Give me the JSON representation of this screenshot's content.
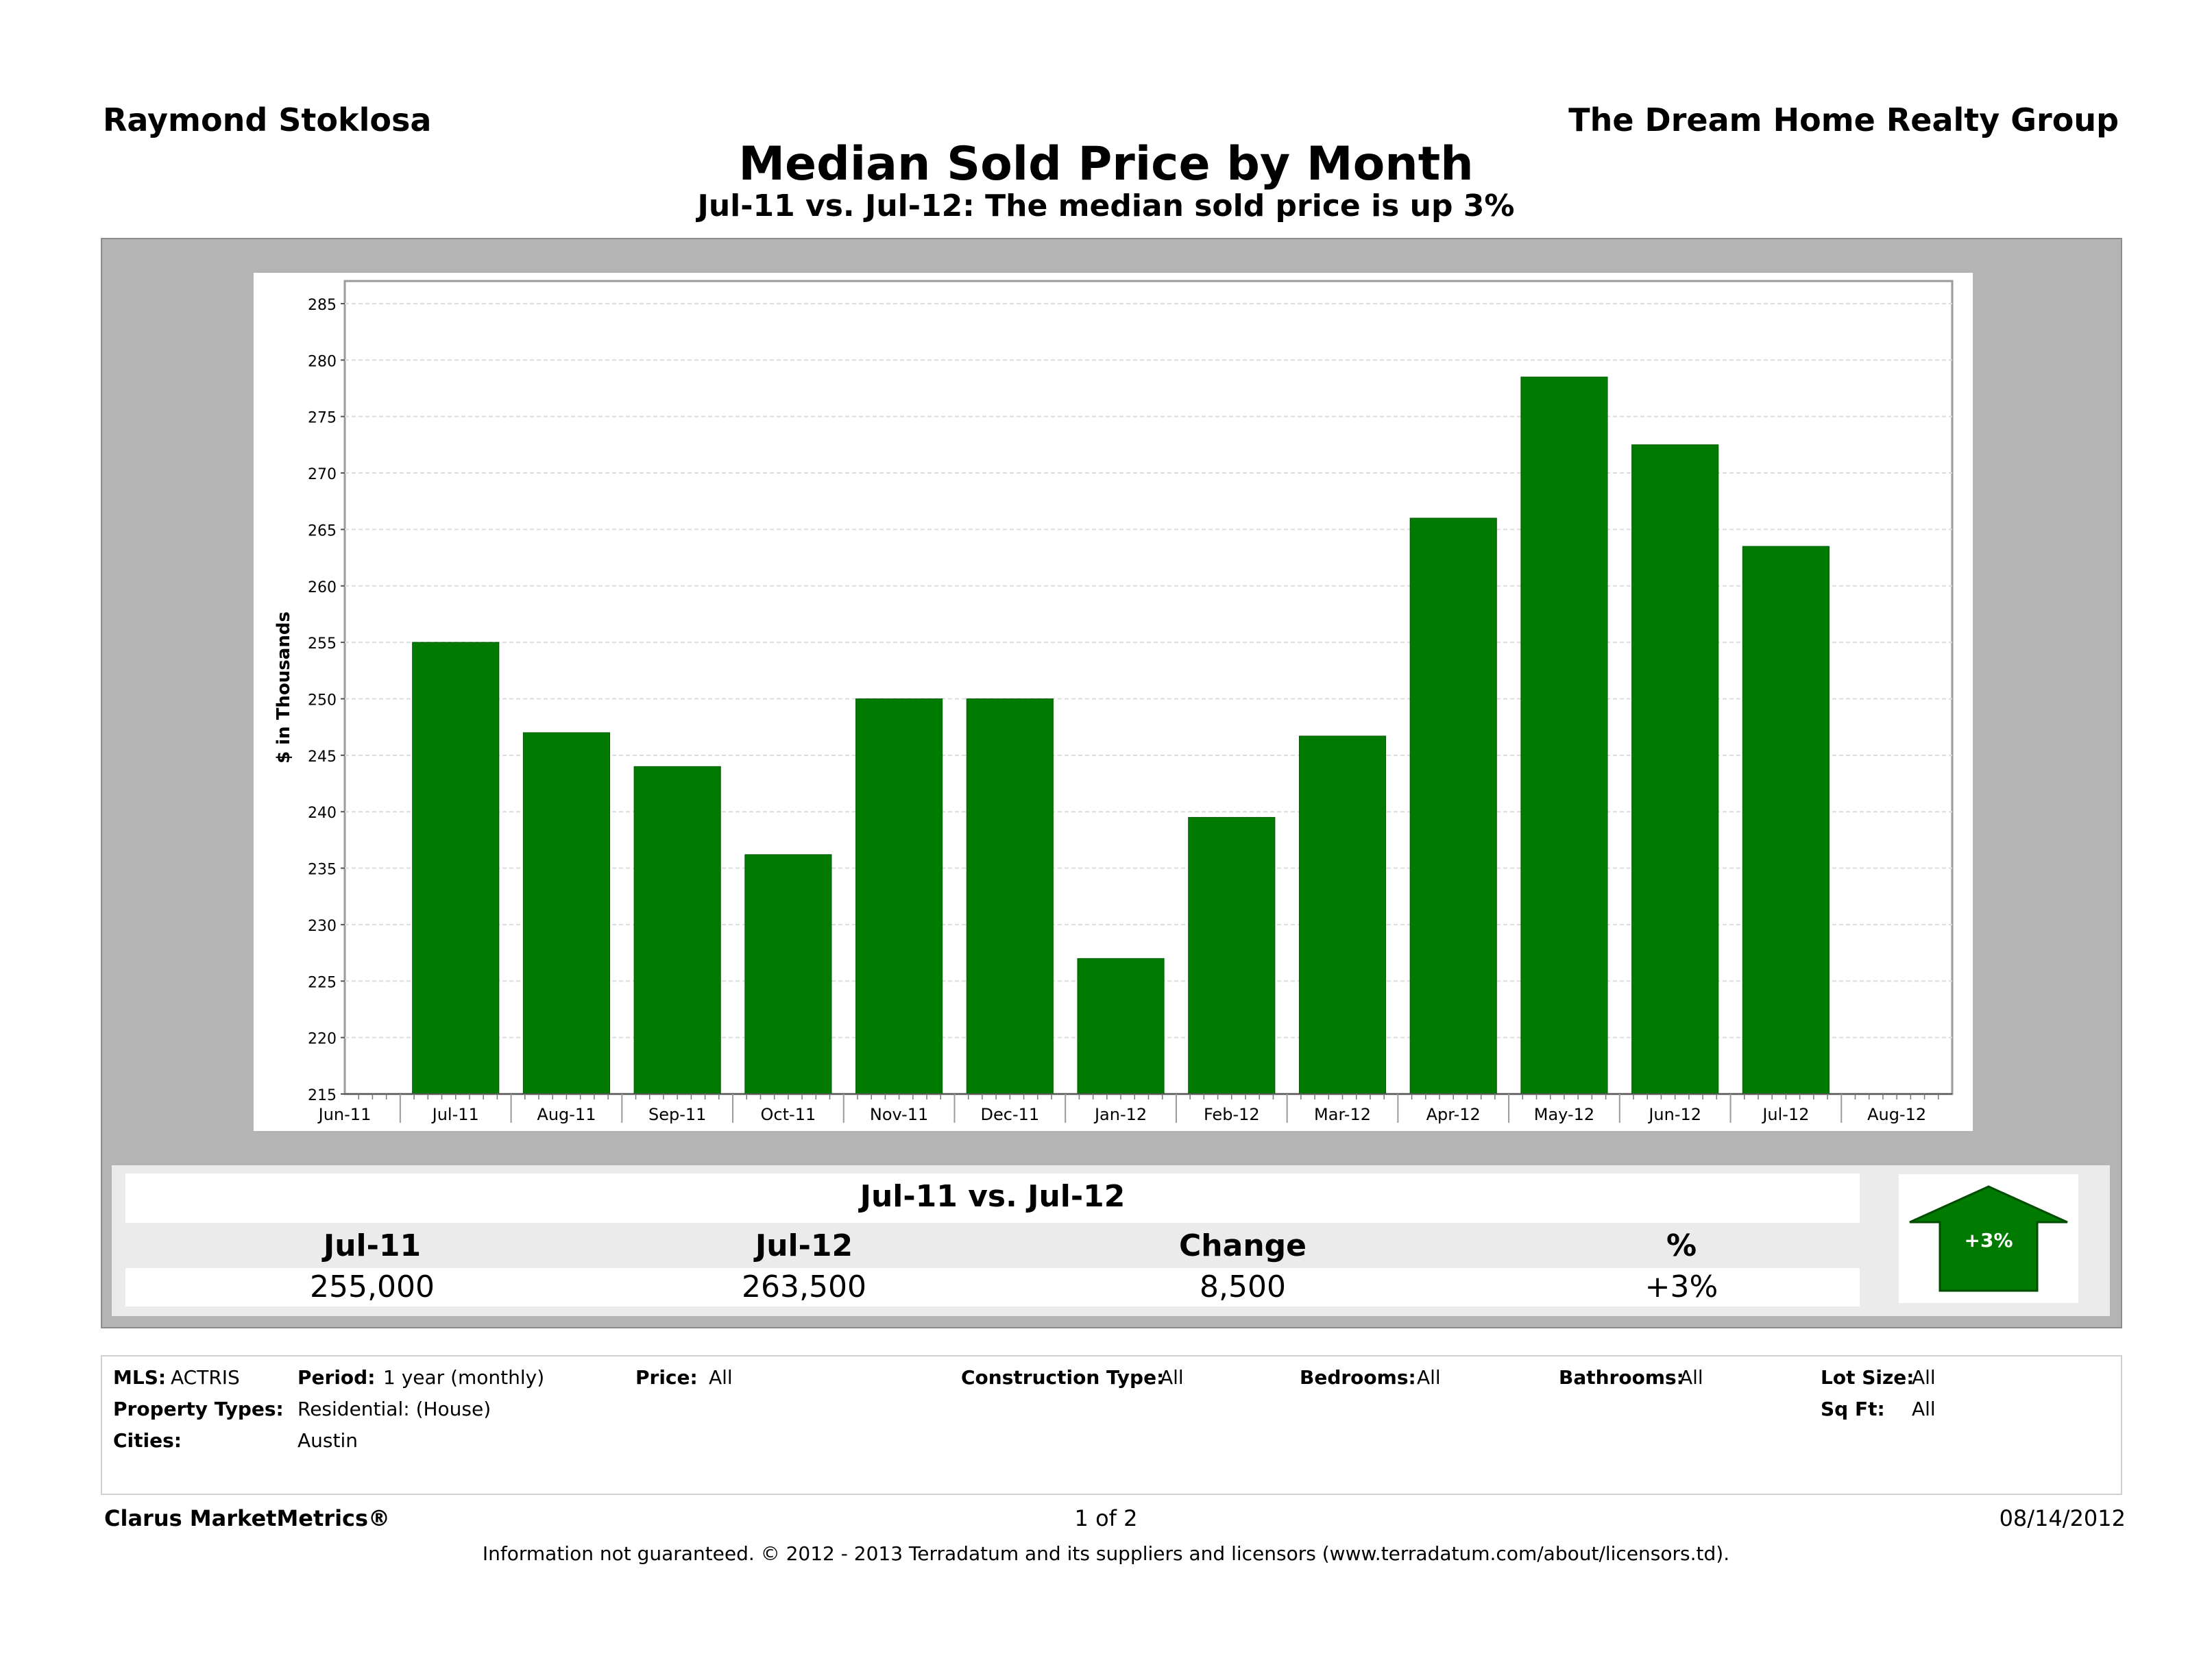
{
  "header": {
    "agent": "Raymond Stoklosa",
    "company": "The Dream Home Realty Group"
  },
  "chart_data": {
    "type": "bar",
    "title": "Median Sold Price by Month",
    "subtitle": "Jul-11 vs. Jul-12:  The median sold price is up 3%",
    "ylabel": "$ in Thousands",
    "xlabel": "",
    "ylim": [
      215,
      287
    ],
    "yticks": [
      215,
      220,
      225,
      230,
      235,
      240,
      245,
      250,
      255,
      260,
      265,
      270,
      275,
      280,
      285
    ],
    "axis_labels": [
      "Jun-11",
      "Jul-11",
      "Aug-11",
      "Sep-11",
      "Oct-11",
      "Nov-11",
      "Dec-11",
      "Jan-12",
      "Feb-12",
      "Mar-12",
      "Apr-12",
      "May-12",
      "Jun-12",
      "Jul-12",
      "Aug-12"
    ],
    "categories": [
      "Jul-11",
      "Aug-11",
      "Sep-11",
      "Oct-11",
      "Nov-11",
      "Dec-11",
      "Jan-12",
      "Feb-12",
      "Mar-12",
      "Apr-12",
      "May-12",
      "Jun-12",
      "Jul-12"
    ],
    "values": [
      255,
      247,
      244,
      236.2,
      250,
      250,
      227,
      239.5,
      246.7,
      266,
      278.5,
      272.5,
      263.5
    ],
    "grid": true,
    "bar_color": "#007a00"
  },
  "summary": {
    "title": "Jul-11 vs. Jul-12",
    "columns": [
      "Jul-11",
      "Jul-12",
      "Change",
      "%"
    ],
    "values": [
      "255,000",
      "263,500",
      "8,500",
      "+3%"
    ],
    "badge": "+3%",
    "badge_color": "#007a00"
  },
  "filters": {
    "mls_label": "MLS:",
    "mls_value": "ACTRIS",
    "period_label": "Period:",
    "period_value": "1 year (monthly)",
    "price_label": "Price:",
    "price_value": "All",
    "construction_label": "Construction Type:",
    "construction_value": "All",
    "bedrooms_label": "Bedrooms:",
    "bedrooms_value": "All",
    "bathrooms_label": "Bathrooms:",
    "bathrooms_value": "All",
    "lotsize_label": "Lot Size:",
    "lotsize_value": "All",
    "property_label": "Property Types:",
    "property_value": "Residential: (House)",
    "sqft_label": "Sq Ft:",
    "sqft_value": "All",
    "cities_label": "Cities:",
    "cities_value": "Austin"
  },
  "footer": {
    "brand": "Clarus MarketMetrics®",
    "page": "1 of 2",
    "date": "08/14/2012",
    "disclaimer": "Information not guaranteed.  © 2012 - 2013 Terradatum and its suppliers and licensors (www.terradatum.com/about/licensors.td)."
  }
}
